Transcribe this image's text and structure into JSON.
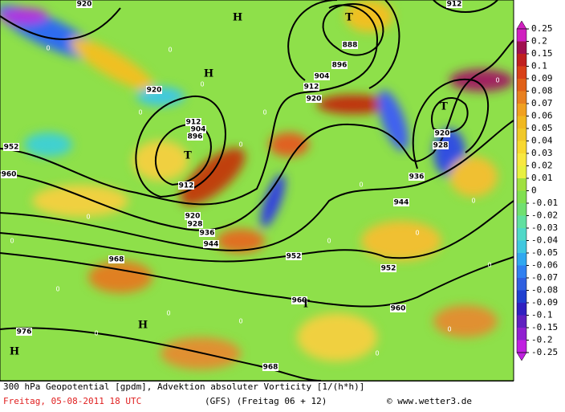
{
  "map": {
    "labels": [
      "920",
      "920",
      "912",
      "904",
      "896",
      "T",
      "912",
      "920",
      "928",
      "936",
      "944",
      "952",
      "960",
      "968",
      "976",
      "952",
      "960",
      "968",
      "960",
      "952",
      "944",
      "936",
      "928",
      "920",
      "T",
      "T",
      "888",
      "896",
      "904",
      "912",
      "920",
      "912",
      "H",
      "H",
      "H",
      "H",
      "T",
      "0",
      "0",
      "0",
      "0",
      "0",
      "0",
      "0",
      "0",
      "0",
      "0",
      "0",
      "0",
      "0",
      "0",
      "0",
      "0",
      "0",
      "0",
      "0",
      "0"
    ],
    "footer": {
      "line1": "300 hPa Geopotential [gpdm], Advektion absoluter Vorticity [1/(h*h)]",
      "date": "Freitag, 05-08-2011  18 UTC",
      "model": "(GFS)  (Freitag 06 + 12)",
      "credit": "© www.wetter3.de"
    },
    "colorbar": {
      "labels": [
        0.25,
        0.2,
        0.15,
        0.1,
        0.09,
        0.08,
        0.07,
        0.06,
        0.05,
        0.04,
        0.03,
        0.02,
        0.01,
        0,
        -0.01,
        -0.02,
        -0.03,
        -0.04,
        -0.05,
        -0.06,
        -0.07,
        -0.08,
        -0.09,
        -0.1,
        -0.15,
        -0.2,
        -0.25
      ]
    }
  }
}
